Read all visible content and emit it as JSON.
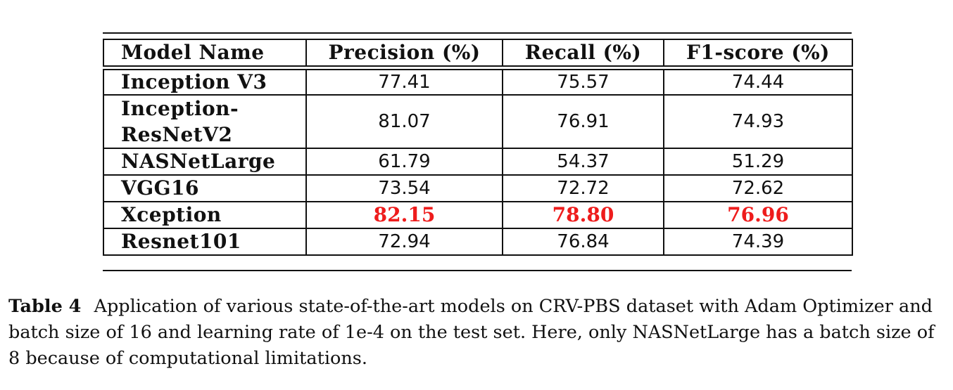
{
  "table": {
    "headers": [
      "Model Name",
      "Precision (%)",
      "Recall (%)",
      "F1-score (%)"
    ],
    "rows": [
      {
        "model": "Inception V3",
        "precision": "77.41",
        "recall": "75.57",
        "f1": "74.44"
      },
      {
        "model": "Inception-\nResNetV2",
        "precision": "81.07",
        "recall": "76.91",
        "f1": "74.93"
      },
      {
        "model": "NASNetLarge",
        "precision": "61.79",
        "recall": "54.37",
        "f1": "51.29"
      },
      {
        "model": "VGG16",
        "precision": "73.54",
        "recall": "72.72",
        "f1": "72.62"
      },
      {
        "model": "Xception",
        "precision": "82.15",
        "recall": "78.80",
        "f1": "76.96"
      },
      {
        "model": "Resnet101",
        "precision": "72.94",
        "recall": "76.84",
        "f1": "74.39"
      }
    ],
    "highlight_color": "#ee1c1c"
  },
  "caption": {
    "label": "Table 4",
    "text": "Application of various state-of-the-art models on CRV-PBS dataset with Adam Optimizer and batch size of 16 and learning rate of 1e-4 on the test set. Here, only NASNetLarge has a batch size of 8 because of computational limitations."
  }
}
